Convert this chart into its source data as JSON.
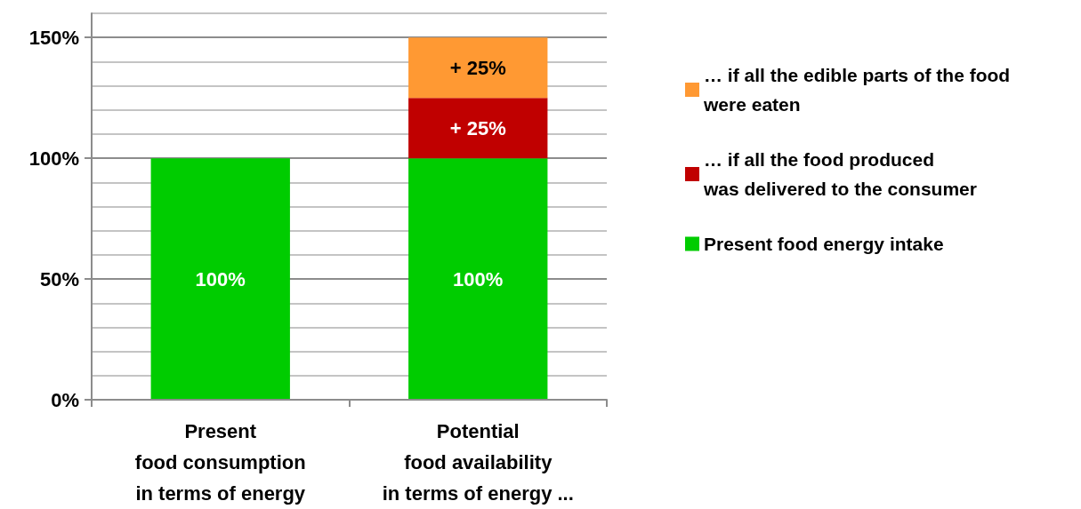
{
  "chart_data": {
    "type": "bar",
    "stacked": true,
    "categories": [
      "Present\nfood consumption\nin terms of energy",
      "Potential\nfood availability\nin terms of energy ..."
    ],
    "series": [
      {
        "name": "Present food energy intake",
        "color": "#00cc00",
        "values": [
          100,
          100
        ],
        "value_labels": [
          "100%",
          "100%"
        ]
      },
      {
        "name": "… if all the food produced\nwas delivered to the consumer",
        "color": "#c00000",
        "values": [
          null,
          25
        ],
        "value_labels": [
          null,
          "+ 25%"
        ]
      },
      {
        "name": "… if all the edible parts of the food\nwere eaten",
        "color": "#ff9933",
        "values": [
          null,
          25
        ],
        "value_labels": [
          null,
          "+ 25%"
        ]
      }
    ],
    "ylim": [
      0,
      160
    ],
    "yticks": [
      {
        "value": 0,
        "label": "0%"
      },
      {
        "value": 10,
        "label": null
      },
      {
        "value": 20,
        "label": null
      },
      {
        "value": 30,
        "label": null
      },
      {
        "value": 40,
        "label": null
      },
      {
        "value": 50,
        "label": "50%"
      },
      {
        "value": 60,
        "label": null
      },
      {
        "value": 70,
        "label": null
      },
      {
        "value": 80,
        "label": null
      },
      {
        "value": 90,
        "label": null
      },
      {
        "value": 100,
        "label": "100%"
      },
      {
        "value": 110,
        "label": null
      },
      {
        "value": 120,
        "label": null
      },
      {
        "value": 130,
        "label": null
      },
      {
        "value": 140,
        "label": null
      },
      {
        "value": 150,
        "label": "150%"
      },
      {
        "value": 160,
        "label": null
      }
    ],
    "grid": "y",
    "legend": "right"
  }
}
